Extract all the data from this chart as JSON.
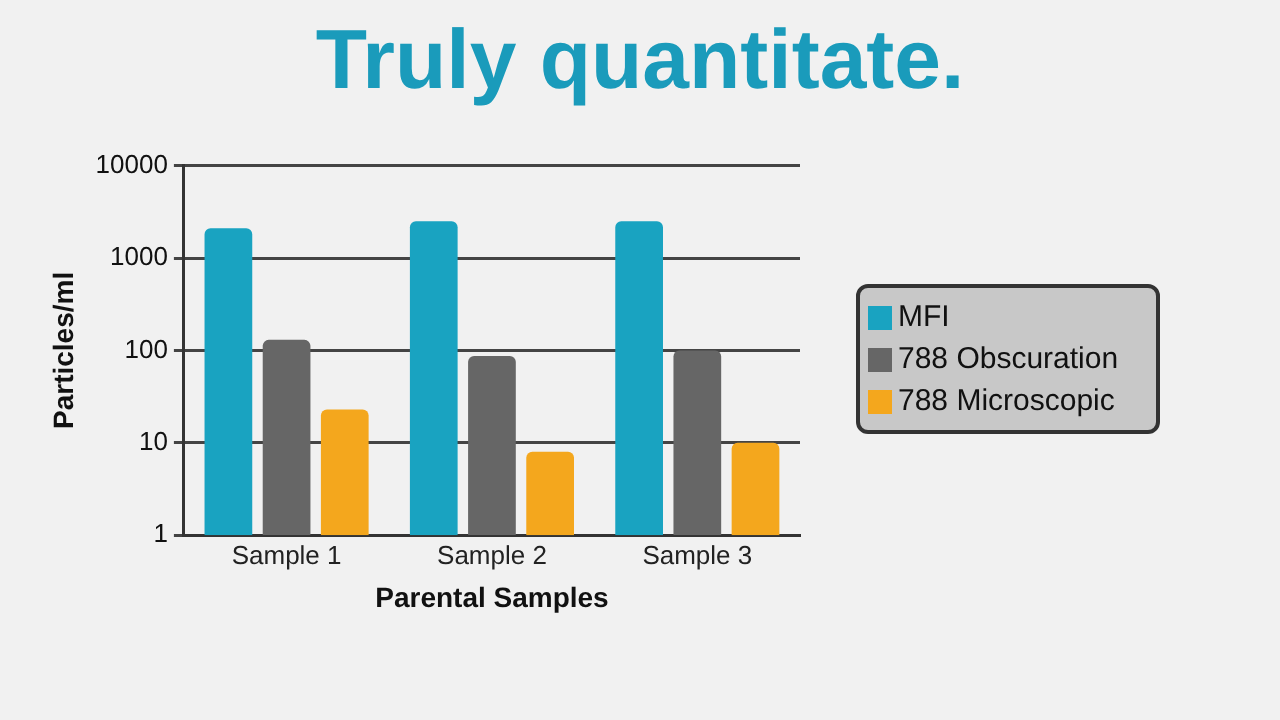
{
  "chart_data": {
    "type": "bar",
    "title": "Truly quantitate.",
    "xlabel": "Parental Samples",
    "ylabel": "Particles/ml",
    "categories": [
      "Sample 1",
      "Sample 2",
      "Sample 3"
    ],
    "series": [
      {
        "name": "MFI",
        "color": "#19a3c1",
        "values": [
          2100,
          2500,
          2500
        ]
      },
      {
        "name": "788 Obscuration",
        "color": "#666666",
        "values": [
          130,
          87,
          100
        ]
      },
      {
        "name": "788 Microscopic",
        "color": "#f4a71d",
        "values": [
          23,
          8,
          10
        ]
      }
    ],
    "log": "y",
    "ylim": [
      1,
      10000
    ],
    "yticks": [
      1,
      10,
      100,
      1000,
      10000
    ],
    "grid": "y",
    "legend": "right"
  }
}
